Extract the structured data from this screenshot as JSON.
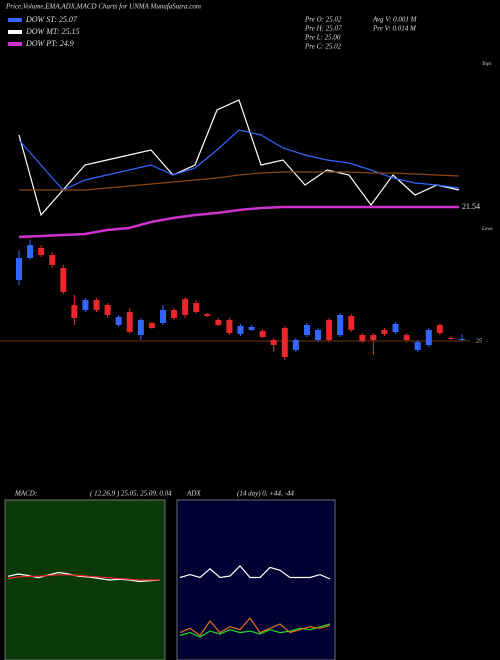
{
  "header": {
    "title": "Price,Volume,EMA,ADX,MACD Charts for UNMA MunafaSutra.com",
    "dow": [
      {
        "label": "DOW ST: 25.07",
        "color": "#3366ff"
      },
      {
        "label": "DOW MT: 25.15",
        "color": "#ffffff"
      },
      {
        "label": "DOW PT: 24.9",
        "color": "#cc33cc"
      }
    ],
    "info": [
      "Pre  O: 25.02",
      "Pre  H: 25.07",
      "Pre  L: 25.00",
      "Pre  C: 25.02",
      "Avg V: 0.001 M",
      "Pre  V: 0.014 M"
    ]
  },
  "chart_data": [
    {
      "type": "line",
      "annotations": [
        "Tops",
        "Lows"
      ],
      "ylim": [
        19.89,
        27.39
      ],
      "series": [
        {
          "color": "#ffffff",
          "values": [
            25.14,
            21.14,
            22.39,
            23.64,
            23.89,
            24.14,
            24.39,
            23.14,
            23.64,
            26.39,
            26.89,
            23.64,
            23.89,
            22.64,
            23.39,
            23.14,
            21.64,
            23.14,
            22.14,
            22.64,
            22.39
          ]
        },
        {
          "color": "#3366ff",
          "values": [
            24.89,
            23.64,
            22.39,
            22.89,
            23.14,
            23.39,
            23.64,
            23.14,
            23.49,
            24.39,
            25.39,
            25.14,
            24.49,
            24.14,
            23.89,
            23.74,
            23.39,
            22.99,
            22.74,
            22.64,
            22.49
          ]
        },
        {
          "color": "#cc33cc",
          "values": [
            20.04,
            20.09,
            20.14,
            20.19,
            20.39,
            20.49,
            20.79,
            20.99,
            21.14,
            21.24,
            21.39,
            21.49,
            21.54,
            21.54,
            21.54,
            21.54,
            21.54,
            21.54,
            21.54,
            21.54,
            21.54
          ]
        },
        {
          "color": "#8b4513",
          "values": [
            22.39,
            22.39,
            22.39,
            22.39,
            22.49,
            22.59,
            22.69,
            22.79,
            22.89,
            22.99,
            23.14,
            23.24,
            23.29,
            23.29,
            23.29,
            23.29,
            23.24,
            23.24,
            23.19,
            23.14,
            23.09
          ]
        }
      ]
    },
    {
      "type": "candlestick",
      "ylim": [
        24.7,
        26.4
      ],
      "yticks": [
        25
      ],
      "up_color": "#3366ff",
      "down_color": "#e8262b",
      "open": [
        25.61,
        25.83,
        25.93,
        25.86,
        25.73,
        25.36,
        25.31,
        25.41,
        25.36,
        25.16,
        25.29,
        25.06,
        25.18,
        25.18,
        25.31,
        25.42,
        25.38,
        25.27,
        25.21,
        25.21,
        25.07,
        25.11,
        25.1,
        25.01,
        25.13,
        24.91,
        25.06,
        25.01,
        25.21,
        25.06,
        25.25,
        25.06,
        25.06,
        25.11,
        25.09,
        25.06,
        24.91,
        24.96,
        25.16,
        25.03,
        25.02
      ],
      "high": [
        25.91,
        26.01,
        25.96,
        25.89,
        25.76,
        25.46,
        25.43,
        25.43,
        25.38,
        25.26,
        25.33,
        25.23,
        25.19,
        25.36,
        25.33,
        25.44,
        25.41,
        25.28,
        25.23,
        25.23,
        25.17,
        25.16,
        25.12,
        25.03,
        25.15,
        25.03,
        25.18,
        25.13,
        25.23,
        25.28,
        25.27,
        25.08,
        25.08,
        25.13,
        25.19,
        25.08,
        25.01,
        25.13,
        25.18,
        25.05,
        25.07
      ],
      "low": [
        25.56,
        25.81,
        25.84,
        25.73,
        25.47,
        25.16,
        25.29,
        25.29,
        25.23,
        25.14,
        25.07,
        25.01,
        25.12,
        25.16,
        25.21,
        25.23,
        25.27,
        25.24,
        25.15,
        25.06,
        25.05,
        25.1,
        25.03,
        24.89,
        24.81,
        24.89,
        25.04,
        24.99,
        24.99,
        25.04,
        25.09,
        24.98,
        24.86,
        25.05,
        25.07,
        24.99,
        24.89,
        24.94,
        25.06,
        25.01,
        25.0
      ],
      "close": [
        25.83,
        25.96,
        25.86,
        25.76,
        25.49,
        25.23,
        25.41,
        25.31,
        25.26,
        25.24,
        25.09,
        25.21,
        25.13,
        25.31,
        25.23,
        25.26,
        25.29,
        25.25,
        25.16,
        25.08,
        25.15,
        25.14,
        25.04,
        24.96,
        24.84,
        25.01,
        25.16,
        25.11,
        25.01,
        25.26,
        25.11,
        25.0,
        25.01,
        25.07,
        25.17,
        25.01,
        24.99,
        25.11,
        25.08,
        25.02,
        25.02
      ]
    },
    {
      "type": "line",
      "title": "MACD:",
      "subtitle": "( 12,26,9 ) 25.05, 25.09, 0.04",
      "background": "#0a3a0a",
      "ylim": [
        -1,
        1
      ],
      "series": [
        {
          "color": "#ffffff",
          "values": [
            0.05,
            0.08,
            0.06,
            0.03,
            0.07,
            0.1,
            0.08,
            0.05,
            0.04,
            0.02,
            0.0,
            0.01,
            0.0,
            -0.02,
            -0.01,
            0.0
          ]
        },
        {
          "color": "#e8262b",
          "values": [
            0.02,
            0.04,
            0.05,
            0.05,
            0.06,
            0.07,
            0.07,
            0.06,
            0.05,
            0.04,
            0.03,
            0.02,
            0.01,
            0.0,
            0.0,
            0.0
          ]
        }
      ]
    },
    {
      "type": "line",
      "title": "ADX",
      "subtitle": "(14 day) 0, +44, -44",
      "background": "#000033",
      "ylim": [
        0,
        100
      ],
      "series": [
        {
          "color": "#ffffff",
          "values": [
            50,
            52,
            50,
            56,
            50,
            51,
            58,
            50,
            50,
            57,
            55,
            50,
            50,
            50,
            52,
            49
          ]
        },
        {
          "color": "#22dd22",
          "values": [
            10,
            12,
            9,
            13,
            11,
            14,
            12,
            13,
            11,
            14,
            12,
            13,
            15,
            14,
            16,
            18
          ]
        },
        {
          "color": "#e07020",
          "values": [
            12,
            15,
            10,
            20,
            12,
            16,
            14,
            22,
            12,
            15,
            18,
            12,
            14,
            16,
            15,
            17
          ]
        }
      ]
    }
  ]
}
